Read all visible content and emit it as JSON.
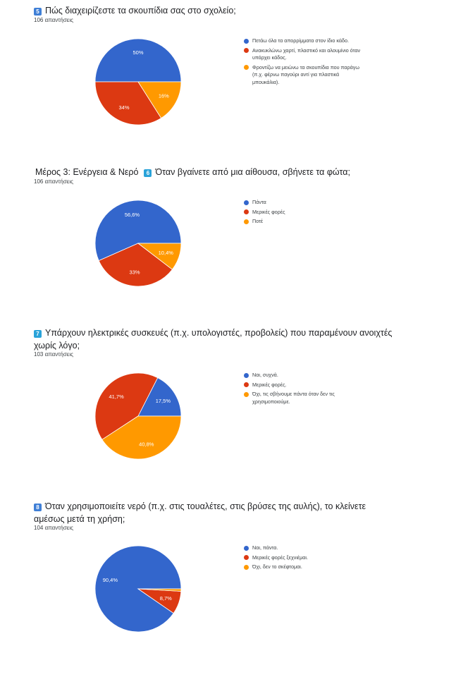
{
  "colors": {
    "blue": "#3366cc",
    "red": "#dc3912",
    "orange": "#ff9900"
  },
  "questions": [
    {
      "number": "5",
      "number_color": "blue",
      "prefix": "",
      "title": "Πώς διαχειρίζεστε τα σκουπίδια σας στο σχολείο;",
      "responses": "106 απαντήσεις",
      "legend": [
        "Πετάω όλα τα απορρίμματα στον ίδιο κάδο.",
        "Ανακυκλώνω χαρτί, πλαστικό και αλουμίνιο όταν υπάρχει κάδος.",
        "Φροντίζω να μειώνω τα σκουπίδια που παράγω (π.χ. φέρνω παγούρι αντί για πλαστικά μπουκάλια)."
      ]
    },
    {
      "number": "6",
      "number_color": "cyan",
      "prefix": "Μέρος 3: Ενέργεια & Νερό",
      "title": "Όταν βγαίνετε από μια αίθουσα, σβήνετε τα φώτα;",
      "responses": "106 απαντήσεις",
      "legend": [
        "Πάντα",
        "Μερικές φορές",
        "Ποτέ"
      ]
    },
    {
      "number": "7",
      "number_color": "cyan",
      "prefix": "",
      "title": "Υπάρχουν ηλεκτρικές συσκευές (π.χ. υπολογιστές, προβολείς) που παραμένουν ανοιχτές χωρίς λόγο;",
      "responses": "103 απαντήσεις",
      "legend": [
        "Ναι, συχνά.",
        "Μερικές φορές.",
        "Όχι, τις σβήνουμε πάντα όταν δεν τις χρησιμοποιούμε."
      ]
    },
    {
      "number": "8",
      "number_color": "blue",
      "prefix": "",
      "title": "Όταν χρησιμοποιείτε νερό (π.χ. στις τουαλέτες, στις βρύσες της αυλής), το κλείνετε αμέσως μετά τη χρήση;",
      "responses": "104 απαντήσεις",
      "legend": [
        "Ναι, πάντα.",
        "Μερικές φορές ξεχνιέμαι.",
        "Όχι, δεν το σκέφτομαι."
      ]
    }
  ],
  "chart_data": [
    {
      "type": "pie",
      "title": "Πώς διαχειρίζεστε τα σκουπίδια σας στο σχολείο;",
      "categories": [
        "Πετάω όλα τα απορρίμματα στον ίδιο κάδο.",
        "Ανακυκλώνω χαρτί, πλαστικό και αλουμίνιο όταν υπάρχει κάδος.",
        "Φροντίζω να μειώνω τα σκουπίδια που παράγω (π.χ. φέρνω παγούρι αντί για πλαστικά μπουκάλια)."
      ],
      "values": [
        50,
        34,
        16
      ],
      "labels": [
        "50%",
        "34%",
        "16%"
      ],
      "legend_position": "right"
    },
    {
      "type": "pie",
      "title": "Όταν βγαίνετε από μια αίθουσα, σβήνετε τα φώτα;",
      "categories": [
        "Πάντα",
        "Μερικές φορές",
        "Ποτέ"
      ],
      "values": [
        56.6,
        33,
        10.4
      ],
      "labels": [
        "56,6%",
        "33%",
        "10,4%"
      ],
      "legend_position": "right"
    },
    {
      "type": "pie",
      "title": "Υπάρχουν ηλεκτρικές συσκευές (π.χ. υπολογιστές, προβολείς) που παραμένουν ανοιχτές χωρίς λόγο;",
      "categories": [
        "Ναι, συχνά.",
        "Μερικές φορές.",
        "Όχι, τις σβήνουμε πάντα όταν δεν τις χρησιμοποιούμε."
      ],
      "values": [
        17.5,
        41.7,
        40.8
      ],
      "labels": [
        "17,5%",
        "41,7%",
        "40,8%"
      ],
      "legend_position": "right"
    },
    {
      "type": "pie",
      "title": "Όταν χρησιμοποιείτε νερό (π.χ. στις τουαλέτες, στις βρύσες της αυλής), το κλείνετε αμέσως μετά τη χρήση;",
      "categories": [
        "Ναι, πάντα.",
        "Μερικές φορές ξεχνιέμαι.",
        "Όχι, δεν το σκέφτομαι."
      ],
      "values": [
        90.4,
        8.7,
        0.9
      ],
      "labels": [
        "90,4%",
        "8,7%",
        ""
      ],
      "legend_position": "right"
    }
  ]
}
